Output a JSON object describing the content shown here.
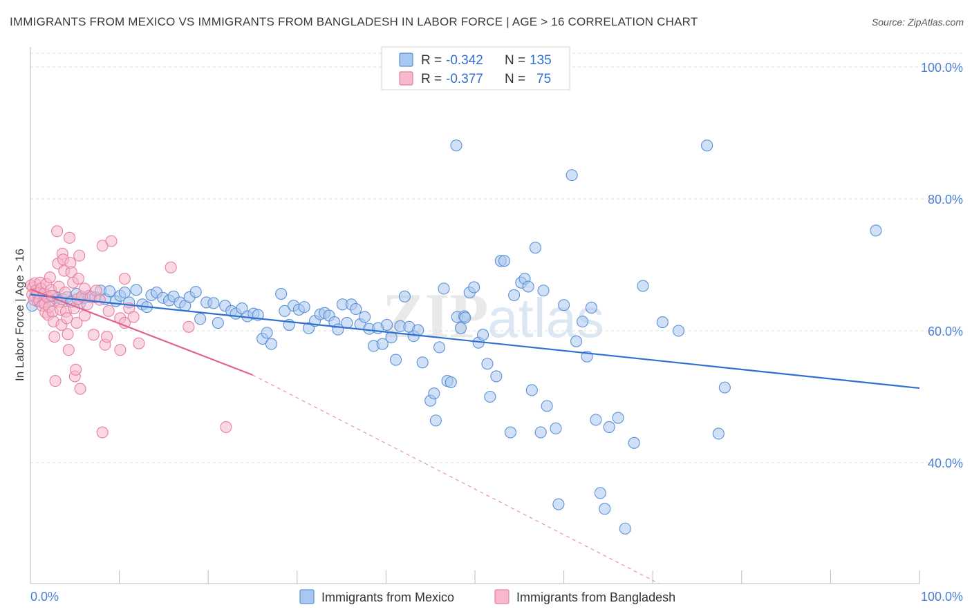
{
  "header": {
    "title": "IMMIGRANTS FROM MEXICO VS IMMIGRANTS FROM BANGLADESH IN LABOR FORCE | AGE > 16 CORRELATION CHART",
    "source": "Source: ZipAtlas.com"
  },
  "watermark": {
    "part1": "ZIP",
    "part2": "atlas"
  },
  "colors": {
    "mexico_fill": "#a9c8f0",
    "mexico_stroke": "#5b8fd6",
    "mexico_line": "#2f6fd0",
    "bangladesh_fill": "#f6b8ca",
    "bangladesh_stroke": "#e77f9f",
    "bangladesh_line": "#e0628d",
    "value_text": "#2f6fd0",
    "label_text": "#333333"
  },
  "legend": {
    "mexico": {
      "r_label": "R =",
      "r_value": "-0.342",
      "n_label": "N =",
      "n_value": "135"
    },
    "bangladesh": {
      "r_label": "R =",
      "r_value": "-0.377",
      "n_label": "N =",
      "n_value": "75"
    }
  },
  "chart_data": {
    "type": "scatter",
    "title": "IMMIGRANTS FROM MEXICO VS IMMIGRANTS FROM BANGLADESH IN LABOR FORCE | AGE > 16 CORRELATION CHART",
    "xlabel": "",
    "ylabel": "In Labor Force | Age > 16",
    "xlim": [
      0,
      100
    ],
    "ylim": [
      20,
      102
    ],
    "x_tick_labels": [
      "0.0%",
      "100.0%"
    ],
    "y_ticks": [
      100,
      80,
      60,
      40
    ],
    "y_tick_labels": [
      "100.0%",
      "80.0%",
      "60.0%",
      "40.0%"
    ],
    "grid": true,
    "legend_position": "top-center",
    "series": [
      {
        "name": "Immigrants from Mexico",
        "color": "#a9c8f0",
        "trend": {
          "x": [
            0,
            100
          ],
          "y": [
            65.5,
            51.3
          ]
        },
        "points": [
          [
            0.2,
            63.8
          ],
          [
            0.5,
            65.2
          ],
          [
            0.8,
            64.5
          ],
          [
            1.1,
            65.8
          ],
          [
            1.4,
            64.2
          ],
          [
            1.8,
            65.4
          ],
          [
            2.3,
            64.6
          ],
          [
            2.6,
            65.3
          ],
          [
            3.1,
            65.0
          ],
          [
            3.6,
            64.8
          ],
          [
            4.1,
            65.1
          ],
          [
            4.6,
            64.4
          ],
          [
            5.2,
            65.6
          ],
          [
            5.6,
            64.2
          ],
          [
            6.1,
            65.0
          ],
          [
            6.6,
            65.3
          ],
          [
            7.3,
            65.1
          ],
          [
            7.9,
            66.1
          ],
          [
            8.4,
            64.8
          ],
          [
            8.9,
            66.0
          ],
          [
            9.6,
            64.5
          ],
          [
            10.1,
            65.3
          ],
          [
            10.6,
            65.8
          ],
          [
            11.1,
            64.3
          ],
          [
            11.9,
            66.2
          ],
          [
            12.6,
            64.0
          ],
          [
            13.1,
            63.6
          ],
          [
            13.6,
            65.4
          ],
          [
            14.2,
            65.8
          ],
          [
            14.9,
            65.0
          ],
          [
            15.6,
            64.6
          ],
          [
            16.1,
            65.2
          ],
          [
            16.8,
            64.3
          ],
          [
            17.4,
            63.8
          ],
          [
            17.9,
            65.1
          ],
          [
            18.6,
            65.9
          ],
          [
            19.1,
            61.8
          ],
          [
            19.8,
            64.3
          ],
          [
            20.6,
            64.2
          ],
          [
            21.1,
            61.2
          ],
          [
            21.9,
            63.8
          ],
          [
            22.6,
            63.0
          ],
          [
            23.1,
            62.6
          ],
          [
            23.8,
            63.4
          ],
          [
            24.4,
            62.2
          ],
          [
            25.1,
            62.6
          ],
          [
            25.6,
            62.4
          ],
          [
            26.1,
            58.8
          ],
          [
            26.6,
            59.7
          ],
          [
            27.1,
            58.0
          ],
          [
            28.2,
            65.6
          ],
          [
            28.6,
            63.0
          ],
          [
            29.1,
            60.9
          ],
          [
            29.6,
            63.8
          ],
          [
            30.2,
            63.2
          ],
          [
            30.8,
            63.6
          ],
          [
            31.3,
            60.4
          ],
          [
            32.0,
            61.5
          ],
          [
            32.6,
            62.5
          ],
          [
            33.1,
            62.7
          ],
          [
            33.6,
            62.3
          ],
          [
            34.2,
            61.3
          ],
          [
            34.6,
            60.2
          ],
          [
            35.1,
            64.0
          ],
          [
            35.6,
            61.2
          ],
          [
            36.1,
            64.0
          ],
          [
            36.6,
            63.3
          ],
          [
            37.1,
            61.0
          ],
          [
            37.6,
            62.1
          ],
          [
            38.1,
            60.3
          ],
          [
            38.6,
            57.7
          ],
          [
            39.1,
            60.4
          ],
          [
            39.6,
            58.0
          ],
          [
            40.1,
            60.9
          ],
          [
            40.6,
            59.0
          ],
          [
            41.1,
            55.6
          ],
          [
            41.6,
            60.7
          ],
          [
            42.1,
            65.2
          ],
          [
            42.6,
            60.6
          ],
          [
            43.1,
            59.2
          ],
          [
            43.6,
            60.1
          ],
          [
            44.1,
            55.2
          ],
          [
            45.0,
            49.4
          ],
          [
            45.4,
            50.5
          ],
          [
            46.0,
            57.5
          ],
          [
            46.5,
            66.4
          ],
          [
            46.9,
            52.4
          ],
          [
            47.3,
            52.2
          ],
          [
            45.6,
            46.4
          ],
          [
            48.0,
            62.1
          ],
          [
            48.4,
            60.4
          ],
          [
            48.8,
            62.2
          ],
          [
            49.4,
            65.8
          ],
          [
            49.9,
            66.6
          ],
          [
            50.4,
            58.2
          ],
          [
            50.9,
            59.4
          ],
          [
            51.4,
            55.0
          ],
          [
            51.7,
            50.0
          ],
          [
            52.4,
            53.1
          ],
          [
            52.9,
            70.6
          ],
          [
            53.3,
            70.6
          ],
          [
            54.0,
            44.6
          ],
          [
            54.4,
            65.4
          ],
          [
            55.2,
            67.3
          ],
          [
            55.6,
            67.9
          ],
          [
            56.0,
            66.7
          ],
          [
            56.4,
            51.0
          ],
          [
            56.8,
            72.6
          ],
          [
            57.4,
            44.6
          ],
          [
            57.7,
            66.1
          ],
          [
            58.1,
            48.6
          ],
          [
            59.1,
            45.2
          ],
          [
            60.0,
            63.9
          ],
          [
            59.4,
            33.7
          ],
          [
            60.9,
            83.6
          ],
          [
            61.4,
            58.4
          ],
          [
            62.1,
            61.4
          ],
          [
            62.6,
            56.1
          ],
          [
            63.1,
            63.5
          ],
          [
            63.6,
            46.5
          ],
          [
            64.1,
            35.4
          ],
          [
            64.6,
            33.0
          ],
          [
            65.1,
            45.4
          ],
          [
            66.1,
            46.8
          ],
          [
            66.9,
            30.0
          ],
          [
            68.9,
            66.8
          ],
          [
            67.9,
            43.0
          ],
          [
            71.1,
            61.3
          ],
          [
            72.9,
            60.0
          ],
          [
            76.1,
            88.1
          ],
          [
            77.4,
            44.4
          ],
          [
            78.1,
            51.4
          ],
          [
            95.1,
            75.2
          ],
          [
            47.9,
            88.1
          ],
          [
            48.9,
            62.0
          ]
        ]
      },
      {
        "name": "Immigrants from Bangladesh",
        "color": "#f6b8ca",
        "trend": {
          "x": [
            0,
            25
          ],
          "y": [
            66.3,
            53.3
          ]
        },
        "trend_extension": {
          "x": [
            25,
            100
          ],
          "y": [
            53.3,
            1.4
          ]
        },
        "points": [
          [
            0.1,
            66.9
          ],
          [
            0.2,
            65.5
          ],
          [
            0.3,
            66.6
          ],
          [
            0.4,
            64.7
          ],
          [
            0.5,
            67.2
          ],
          [
            0.6,
            66.1
          ],
          [
            0.8,
            65.7
          ],
          [
            1.0,
            64.6
          ],
          [
            1.1,
            67.3
          ],
          [
            1.2,
            66.4
          ],
          [
            1.3,
            63.8
          ],
          [
            1.5,
            65.6
          ],
          [
            1.6,
            64.1
          ],
          [
            1.7,
            62.8
          ],
          [
            1.8,
            67.1
          ],
          [
            1.9,
            65.1
          ],
          [
            2.0,
            62.4
          ],
          [
            2.1,
            63.6
          ],
          [
            2.2,
            68.1
          ],
          [
            2.3,
            66.2
          ],
          [
            2.4,
            65.3
          ],
          [
            2.5,
            62.9
          ],
          [
            2.6,
            61.4
          ],
          [
            2.7,
            59.1
          ],
          [
            2.8,
            52.4
          ],
          [
            3.0,
            75.1
          ],
          [
            3.1,
            70.2
          ],
          [
            3.2,
            66.7
          ],
          [
            3.3,
            64.4
          ],
          [
            3.4,
            63.2
          ],
          [
            3.5,
            60.9
          ],
          [
            3.6,
            71.7
          ],
          [
            3.7,
            70.8
          ],
          [
            3.8,
            69.1
          ],
          [
            3.9,
            65.8
          ],
          [
            4.0,
            62.9
          ],
          [
            4.1,
            61.9
          ],
          [
            4.2,
            59.5
          ],
          [
            4.3,
            57.1
          ],
          [
            4.4,
            74.1
          ],
          [
            4.5,
            70.3
          ],
          [
            4.6,
            68.9
          ],
          [
            4.8,
            67.3
          ],
          [
            4.9,
            63.4
          ],
          [
            5.0,
            53.1
          ],
          [
            5.1,
            54.1
          ],
          [
            5.2,
            61.2
          ],
          [
            5.3,
            64.8
          ],
          [
            5.4,
            67.9
          ],
          [
            5.5,
            71.4
          ],
          [
            5.6,
            51.2
          ],
          [
            5.8,
            65.2
          ],
          [
            6.1,
            62.3
          ],
          [
            6.4,
            64.0
          ],
          [
            6.8,
            65.1
          ],
          [
            7.1,
            59.4
          ],
          [
            7.4,
            66.1
          ],
          [
            7.8,
            64.7
          ],
          [
            8.1,
            72.9
          ],
          [
            8.4,
            57.9
          ],
          [
            8.6,
            59.1
          ],
          [
            8.8,
            63.0
          ],
          [
            6.1,
            66.4
          ],
          [
            9.1,
            73.6
          ],
          [
            10.1,
            57.1
          ],
          [
            10.1,
            61.9
          ],
          [
            10.6,
            67.9
          ],
          [
            10.6,
            61.2
          ],
          [
            11.1,
            63.4
          ],
          [
            11.6,
            62.1
          ],
          [
            12.2,
            58.1
          ],
          [
            15.8,
            69.6
          ],
          [
            17.8,
            60.6
          ],
          [
            22.0,
            45.4
          ],
          [
            8.1,
            44.6
          ]
        ]
      }
    ]
  },
  "legend_bottom": {
    "mexico_label": "Immigrants from Mexico",
    "bangladesh_label": "Immigrants from Bangladesh"
  }
}
